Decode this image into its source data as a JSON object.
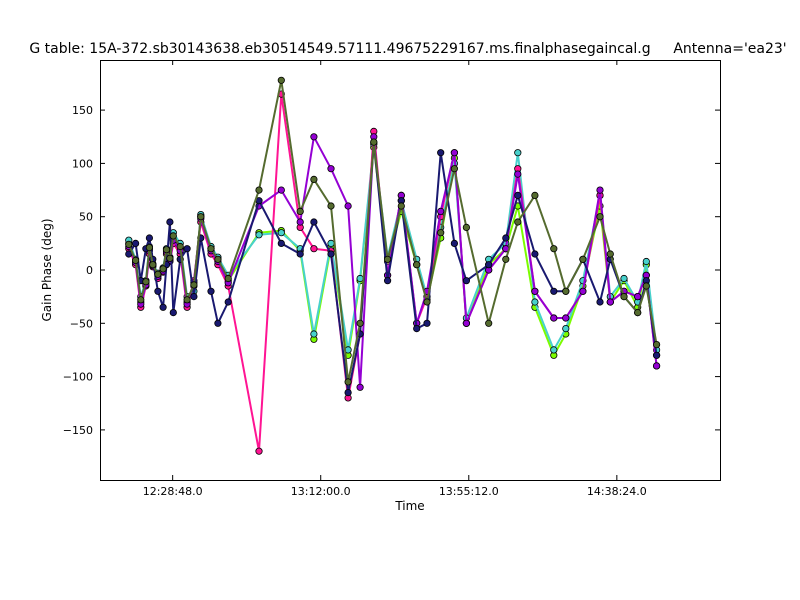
{
  "chart_data": {
    "type": "line",
    "title": "G table: 15A-372.sb30143638.eb30514549.57111.49675229167.ms.finalphasegaincal.g",
    "antenna_label": "Antenna='ea23'",
    "xlabel": "Time",
    "ylabel": "Gain Phase (deg)",
    "x_units": "minutes after 12:00:00",
    "xlim": [
      7.6,
      188.5
    ],
    "ylim": [
      -197,
      197
    ],
    "xticks": [
      {
        "value": 28.8,
        "label": "12:28:48.0"
      },
      {
        "value": 72.0,
        "label": "13:12:00.0"
      },
      {
        "value": 115.2,
        "label": "13:55:12.0"
      },
      {
        "value": 158.4,
        "label": "14:38:24.0"
      }
    ],
    "yticks": [
      {
        "value": 150,
        "label": "150"
      },
      {
        "value": 100,
        "label": "100"
      },
      {
        "value": 50,
        "label": "50"
      },
      {
        "value": 0,
        "label": "0"
      },
      {
        "value": -50,
        "label": "−50"
      },
      {
        "value": -100,
        "label": "−100"
      },
      {
        "value": -150,
        "label": "−150"
      }
    ],
    "grid": false,
    "legend": "none",
    "x": [
      16,
      18,
      19.5,
      21,
      22,
      23,
      24.5,
      26,
      27,
      28,
      29,
      31,
      33,
      35,
      37,
      40,
      42,
      45,
      54,
      60.5,
      66,
      70,
      75,
      80,
      83.5,
      87.5,
      91.5,
      95.5,
      100,
      103,
      107,
      111,
      114.5,
      121,
      126,
      129.5,
      134.5,
      140,
      143.5,
      148.5,
      153.5,
      156.5,
      160.5,
      164.5,
      167,
      170
    ],
    "series": [
      {
        "color": "#7CFC00",
        "values": [
          25,
          8,
          -30,
          -12,
          20,
          5,
          -5,
          0,
          18,
          10,
          30,
          20,
          -30,
          -15,
          50,
          20,
          10,
          -10,
          35,
          37,
          18,
          -65,
          22,
          -80,
          -10,
          115,
          8,
          55,
          5,
          -28,
          30,
          105,
          -50,
          5,
          20,
          60,
          -35,
          -80,
          -60,
          -15,
          60,
          -30,
          -10,
          -35,
          5,
          -80
        ]
      },
      {
        "color": "#48D1CC",
        "values": [
          28,
          10,
          -25,
          -10,
          22,
          6,
          -3,
          2,
          20,
          12,
          35,
          25,
          -25,
          -20,
          52,
          22,
          12,
          -5,
          33,
          35,
          20,
          -60,
          25,
          -75,
          -8,
          118,
          12,
          65,
          10,
          -25,
          40,
          100,
          -45,
          10,
          25,
          110,
          -30,
          -75,
          -55,
          -10,
          70,
          -25,
          -8,
          -30,
          8,
          -75
        ]
      },
      {
        "color": "#FF1493",
        "values": [
          20,
          5,
          -35,
          -15,
          15,
          3,
          -8,
          -2,
          15,
          8,
          25,
          15,
          -35,
          -10,
          45,
          15,
          5,
          -15,
          -170,
          165,
          40,
          20,
          18,
          -120,
          -60,
          130,
          -5,
          70,
          -50,
          -25,
          50,
          110,
          -50,
          0,
          20,
          95,
          -20,
          -45,
          -45,
          -20,
          70,
          -30,
          -20,
          -25,
          -5,
          -90
        ]
      },
      {
        "color": "#9400D3",
        "values": [
          22,
          7,
          -32,
          -14,
          18,
          4,
          -6,
          -1,
          17,
          9,
          28,
          18,
          -32,
          -12,
          48,
          18,
          8,
          -12,
          60,
          75,
          45,
          125,
          95,
          60,
          -110,
          125,
          -5,
          70,
          -50,
          -20,
          55,
          110,
          -50,
          0,
          20,
          90,
          -20,
          -45,
          -45,
          -20,
          75,
          -30,
          -20,
          -25,
          -5,
          -90
        ]
      },
      {
        "color": "#191970",
        "values": [
          15,
          25,
          -10,
          20,
          30,
          10,
          -20,
          -35,
          5,
          45,
          -40,
          10,
          20,
          -25,
          30,
          -20,
          -50,
          -30,
          65,
          25,
          15,
          45,
          15,
          -115,
          -60,
          120,
          -10,
          65,
          -55,
          -50,
          110,
          25,
          -10,
          5,
          30,
          70,
          15,
          -20,
          -20,
          10,
          -30,
          10,
          -25,
          -40,
          -10,
          -80
        ]
      },
      {
        "color": "#556B2F",
        "values": [
          24,
          9,
          -28,
          -11,
          21,
          5,
          -4,
          1,
          19,
          11,
          32,
          22,
          -28,
          -14,
          50,
          20,
          10,
          -8,
          75,
          178,
          55,
          85,
          60,
          -105,
          -50,
          120,
          10,
          60,
          5,
          -30,
          35,
          95,
          40,
          -50,
          10,
          45,
          70,
          20,
          -20,
          10,
          50,
          15,
          -25,
          -40,
          -15,
          -70
        ]
      }
    ]
  }
}
